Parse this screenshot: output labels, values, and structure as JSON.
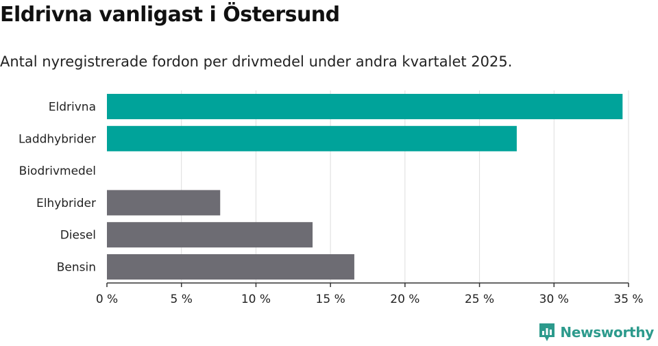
{
  "header": {
    "title": "Eldrivna vanligast i Östersund",
    "subtitle": "Antal nyregistrerade fordon per drivmedel under andra kvartalet 2025."
  },
  "colors": {
    "highlight": "#00a39a",
    "default": "#6d6c73",
    "grid": "#dddddd",
    "axis": "#333333"
  },
  "chart_data": {
    "type": "bar",
    "orientation": "horizontal",
    "categories": [
      "Eldrivna",
      "Laddhybrider",
      "Biodrivmedel",
      "Elhybrider",
      "Diesel",
      "Bensin"
    ],
    "values": [
      34.6,
      27.5,
      0,
      7.6,
      13.8,
      16.6
    ],
    "highlighted": [
      true,
      true,
      false,
      false,
      false,
      false
    ],
    "xlim": [
      0,
      35
    ],
    "xticks": [
      0,
      5,
      10,
      15,
      20,
      25,
      30,
      35
    ],
    "xtick_labels": [
      "0 %",
      "5 %",
      "10 %",
      "15 %",
      "20 %",
      "25 %",
      "30 %",
      "35 %"
    ],
    "grid": true,
    "title": "Eldrivna vanligast i Östersund",
    "xlabel": "",
    "ylabel": ""
  },
  "brand": {
    "name": "Newsworthy",
    "icon": "newsworthy-logo-icon"
  }
}
